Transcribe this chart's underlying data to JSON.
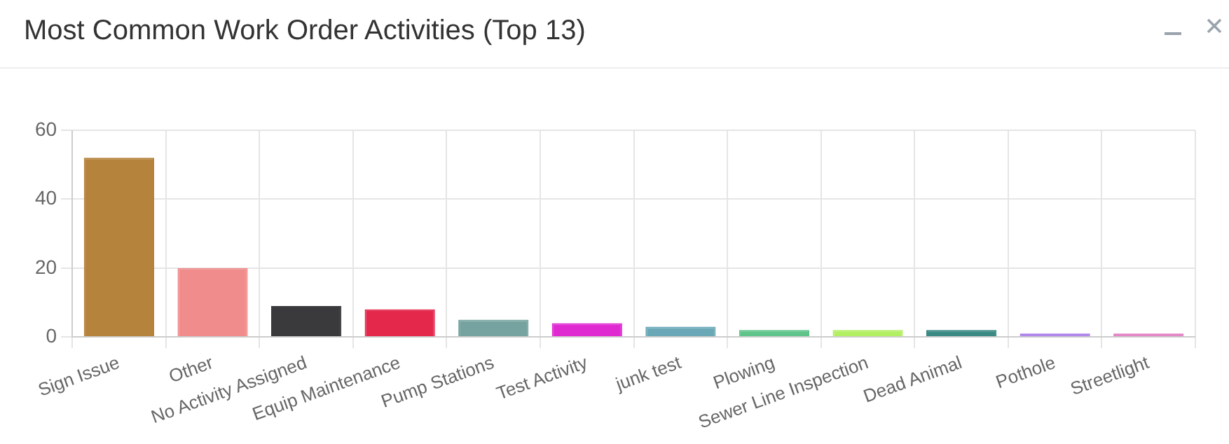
{
  "chart_data": {
    "type": "bar",
    "title": "Most Common Work Order Activities (Top 13)",
    "categories": [
      "Sign Issue",
      "Other",
      "No Activity Assigned",
      "Equip Maintenance",
      "Pump Stations",
      "Test Activity",
      "junk test",
      "Plowing",
      "Sewer Line Inspection",
      "Dead Animal",
      "Pothole",
      "Streetlight"
    ],
    "values": [
      52,
      20,
      9,
      8,
      5,
      4,
      3,
      2,
      2,
      2,
      1,
      1
    ],
    "colors": [
      "#b5833c",
      "#f08c8c",
      "#3a3a3c",
      "#e3284c",
      "#76a39f",
      "#e02ad1",
      "#6aa8b8",
      "#5fc48a",
      "#b3ef63",
      "#3a8a83",
      "#a87be8",
      "#e07bc1"
    ],
    "ylim": [
      0,
      60
    ],
    "yticks": [
      0,
      20,
      40,
      60
    ],
    "grid": true,
    "legend": false
  }
}
